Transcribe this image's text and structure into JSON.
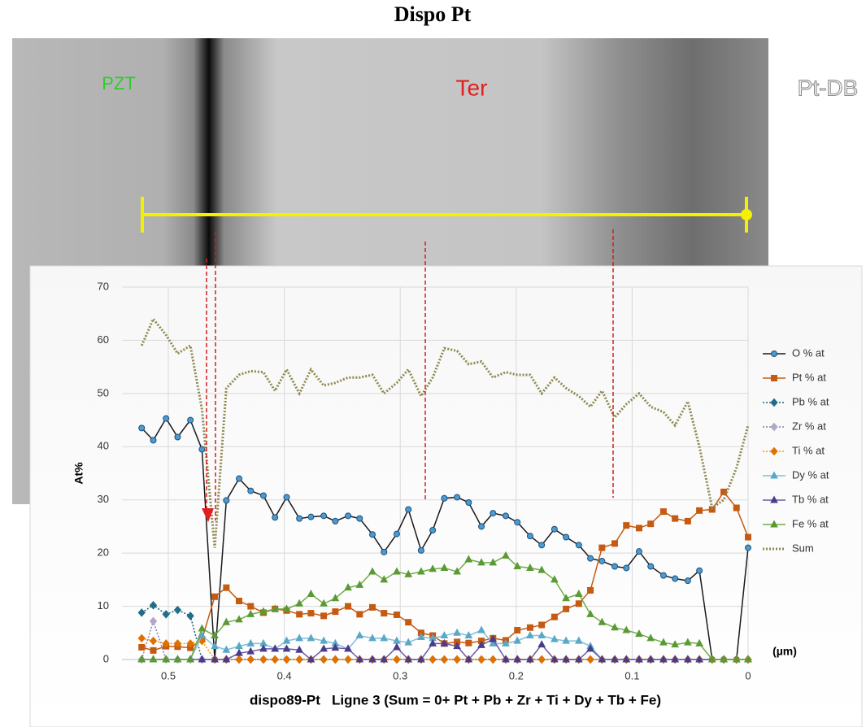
{
  "header": {
    "title": "Dispo Pt"
  },
  "image": {
    "labels": [
      {
        "text": "PZT",
        "color": "#2ecc2e"
      },
      {
        "text": "Ter",
        "color": "#e02020"
      },
      {
        "text": "Pt-DB",
        "color": "#f4f4f4"
      }
    ]
  },
  "chart_data": {
    "type": "line",
    "title": "dispo89-Pt   Ligne 3 (Sum = 0+ Pt + Pb + Zr + Ti + Dy + Tb + Fe)",
    "ylabel": "At%",
    "xlabel": "(µm)",
    "xlim": [
      0.54,
      0
    ],
    "xticks": [
      0.5,
      0.4,
      0.3,
      0.2,
      0.1,
      0
    ],
    "ylim": [
      0,
      70
    ],
    "yticks": [
      0,
      10,
      20,
      30,
      40,
      50,
      60,
      70
    ],
    "grid": true,
    "legend": "right",
    "x": [
      0.523,
      0.513,
      0.502,
      0.492,
      0.481,
      0.471,
      0.46,
      0.45,
      0.439,
      0.429,
      0.418,
      0.408,
      0.398,
      0.387,
      0.377,
      0.366,
      0.356,
      0.345,
      0.335,
      0.324,
      0.314,
      0.303,
      0.293,
      0.282,
      0.272,
      0.262,
      0.251,
      0.241,
      0.23,
      0.22,
      0.209,
      0.199,
      0.188,
      0.178,
      0.167,
      0.157,
      0.146,
      0.136,
      0.126,
      0.115,
      0.105,
      0.094,
      0.084,
      0.073,
      0.063,
      0.052,
      0.042,
      0.031,
      0.021,
      0.01,
      0
    ],
    "series": [
      {
        "name": "O % at",
        "color": "#1a1a1a",
        "marker_color": "#4a9bd1",
        "marker": "circle",
        "line_style": "solid",
        "values": [
          43.5,
          41.2,
          45.3,
          41.8,
          45.0,
          39.5,
          0,
          29.9,
          34.0,
          31.7,
          30.8,
          26.7,
          30.5,
          26.5,
          26.8,
          27.0,
          26.0,
          27.0,
          26.5,
          23.5,
          20.2,
          23.6,
          28.2,
          20.5,
          24.3,
          30.3,
          30.5,
          29.5,
          25.0,
          27.5,
          27.0,
          25.8,
          23.2,
          21.5,
          24.5,
          23.0,
          21.5,
          19.0,
          18.5,
          17.5,
          17.2,
          20.3,
          17.5,
          15.8,
          15.2,
          14.8,
          16.7,
          0,
          0,
          0,
          21.0
        ]
      },
      {
        "name": "Pt % at",
        "color": "#c55a11",
        "marker_color": "#c55a11",
        "marker": "square",
        "line_style": "solid",
        "values": [
          2.3,
          1.7,
          2.5,
          2.4,
          2.2,
          3.8,
          11.8,
          13.5,
          11.0,
          10.0,
          8.8,
          9.5,
          9.2,
          8.5,
          8.7,
          8.2,
          9.0,
          10.0,
          8.5,
          9.8,
          8.7,
          8.4,
          7.0,
          5.0,
          4.5,
          3.0,
          3.3,
          3.1,
          3.5,
          4.0,
          3.6,
          5.5,
          6.0,
          6.5,
          8.0,
          9.5,
          10.5,
          13.0,
          21.0,
          21.8,
          25.2,
          24.7,
          25.5,
          27.8,
          26.5,
          26.0,
          28.0,
          28.2,
          31.5,
          28.5,
          23.0
        ]
      },
      {
        "name": "Pb % at",
        "color": "#1f5f7a",
        "marker_color": "#1f6f8a",
        "marker": "diamond",
        "line_style": "dotted",
        "values": [
          8.8,
          10.2,
          8.5,
          9.3,
          8.2,
          0,
          0,
          0,
          0,
          0,
          0,
          0,
          0,
          0,
          0,
          0,
          0,
          0,
          0,
          0,
          0,
          0,
          0,
          0,
          0,
          0,
          0,
          0,
          0,
          0,
          0,
          0,
          0,
          0,
          0,
          0,
          0,
          0,
          0,
          0,
          0,
          0,
          0,
          0,
          0,
          0,
          0,
          0,
          0,
          0,
          0
        ]
      },
      {
        "name": "Zr % at",
        "color": "#8a7fa0",
        "marker_color": "#b0a8c8",
        "marker": "diamond",
        "line_style": "dotted",
        "values": [
          0,
          7.2,
          0,
          0,
          0,
          0,
          0,
          0,
          0,
          0,
          0,
          0,
          0,
          0,
          0,
          0,
          0,
          0,
          0,
          0,
          0,
          0,
          0,
          0,
          0,
          0,
          0,
          0,
          0,
          0,
          0,
          0,
          0,
          0,
          0,
          0,
          0,
          0,
          0,
          0,
          0,
          0,
          0,
          0,
          0,
          0,
          0,
          0,
          0,
          0,
          0
        ]
      },
      {
        "name": "Ti % at",
        "color": "#f0a000",
        "marker_color": "#e07000",
        "marker": "diamond",
        "line_style": "dotted",
        "values": [
          4.0,
          3.5,
          3.0,
          3.0,
          3.0,
          3.5,
          0,
          0,
          0,
          0,
          0,
          0,
          0,
          0,
          0,
          0,
          0,
          0,
          0,
          0,
          0,
          0,
          0,
          0,
          0,
          0,
          0,
          0,
          0,
          0,
          0,
          0,
          0,
          0,
          0,
          0,
          0,
          0,
          0,
          0,
          0,
          0,
          0,
          0,
          0,
          0,
          0,
          0,
          0,
          0,
          0
        ]
      },
      {
        "name": "Dy % at",
        "color": "#7fc0d8",
        "marker_color": "#5aa8c8",
        "marker": "triangle",
        "line_style": "solid",
        "values": [
          0,
          0,
          0,
          0,
          0,
          4.5,
          2.5,
          1.8,
          2.5,
          3.0,
          3.0,
          2.0,
          3.5,
          4.0,
          4.0,
          3.5,
          3.0,
          2.0,
          4.5,
          4.0,
          4.0,
          3.5,
          3.2,
          4.2,
          4.0,
          4.5,
          5.0,
          4.5,
          5.5,
          3.0,
          3.0,
          3.5,
          4.5,
          4.5,
          3.8,
          3.5,
          3.5,
          2.5,
          0,
          0,
          0,
          0,
          0,
          0,
          0,
          0,
          0,
          0,
          0,
          0,
          0
        ]
      },
      {
        "name": "Tb % at",
        "color": "#6a5aa8",
        "marker_color": "#4b3b8a",
        "marker": "triangle",
        "line_style": "solid",
        "values": [
          0,
          0,
          0,
          0,
          0,
          0,
          0,
          0,
          1.2,
          1.5,
          2.0,
          2.0,
          2.0,
          1.8,
          0,
          2.0,
          2.2,
          2.0,
          0,
          0,
          0,
          2.3,
          0,
          0,
          3.0,
          3.0,
          2.5,
          0,
          2.7,
          3.8,
          0,
          0,
          0,
          2.8,
          0,
          0,
          0,
          2.0,
          0,
          0,
          0,
          0,
          0,
          0,
          0,
          0,
          0,
          0,
          0,
          0,
          0
        ]
      },
      {
        "name": "Fe % at",
        "color": "#70ad47",
        "marker_color": "#5a9a35",
        "marker": "triangle",
        "line_style": "solid",
        "values": [
          0,
          0,
          0,
          0,
          0,
          5.8,
          4.5,
          7.0,
          7.5,
          8.5,
          9.0,
          9.5,
          9.5,
          10.5,
          12.3,
          10.5,
          11.5,
          13.5,
          14.0,
          16.5,
          15.0,
          16.5,
          16.0,
          16.5,
          17.0,
          17.2,
          16.5,
          18.8,
          18.2,
          18.2,
          19.5,
          17.5,
          17.2,
          16.8,
          15.0,
          11.5,
          12.3,
          8.5,
          7.0,
          6.0,
          5.5,
          4.8,
          4.0,
          3.2,
          2.8,
          3.2,
          3.0,
          0,
          0,
          0,
          0
        ]
      },
      {
        "name": "Sum",
        "color": "#8f8a50",
        "marker_color": "#8f8a50",
        "marker": "none",
        "line_style": "dotted",
        "values": [
          59,
          64,
          61,
          57.5,
          59,
          47,
          21,
          51,
          53.5,
          54.2,
          54,
          50.5,
          54.5,
          50,
          54.5,
          51.5,
          52,
          53,
          53,
          53.5,
          50,
          52,
          54.5,
          49.5,
          53,
          58.5,
          58,
          55.5,
          56,
          53,
          54,
          53.5,
          53.5,
          50,
          53,
          51,
          49.5,
          47.5,
          50.5,
          45.5,
          48,
          50,
          47.5,
          46.5,
          44,
          48.5,
          40,
          28.5,
          30,
          36,
          44
        ]
      }
    ]
  }
}
